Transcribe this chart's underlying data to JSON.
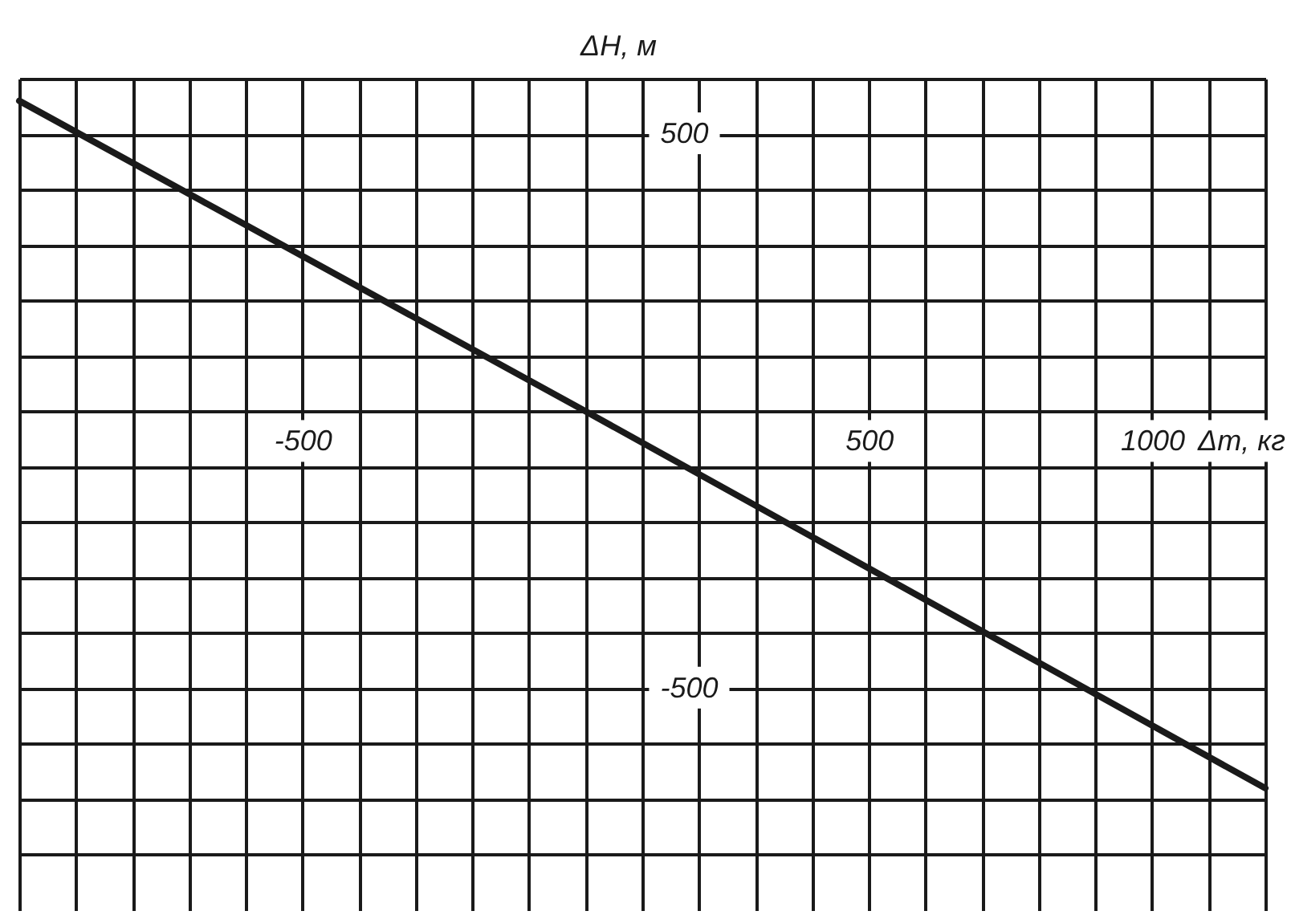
{
  "chart_data": {
    "type": "line",
    "xlabel": "Δm, кг",
    "ylabel": "ΔH, м",
    "x": [
      -1000,
      0,
      1200
    ],
    "values": [
      560,
      0,
      -680
    ],
    "color": "#1a1a1a",
    "xlim": [
      -1000,
      1200
    ],
    "ylim": [
      -900,
      600
    ],
    "xticks": [
      {
        "value": -1000,
        "label": null
      },
      {
        "value": -900,
        "label": null
      },
      {
        "value": -800,
        "label": null
      },
      {
        "value": -700,
        "label": null
      },
      {
        "value": -600,
        "label": null
      },
      -500,
      {
        "value": -400,
        "label": null
      },
      {
        "value": -300,
        "label": null
      },
      {
        "value": -200,
        "label": null
      },
      {
        "value": -100,
        "label": null
      },
      {
        "value": 0,
        "label": null
      },
      {
        "value": 100,
        "label": null
      },
      {
        "value": 200,
        "label": null
      },
      {
        "value": 300,
        "label": null
      },
      {
        "value": 400,
        "label": null
      },
      500,
      {
        "value": 600,
        "label": null
      },
      {
        "value": 700,
        "label": null
      },
      {
        "value": 800,
        "label": null
      },
      {
        "value": 900,
        "label": null
      },
      1000,
      {
        "value": 1100,
        "label": null
      },
      {
        "value": 1200,
        "label": null
      }
    ],
    "yticks": [
      {
        "value": -800,
        "label": null
      },
      {
        "value": -700,
        "label": null
      },
      {
        "value": -600,
        "label": null
      },
      -500,
      {
        "value": -400,
        "label": null
      },
      {
        "value": -300,
        "label": null
      },
      {
        "value": -200,
        "label": null
      },
      {
        "value": -100,
        "label": null
      },
      {
        "value": 0,
        "label": null
      },
      {
        "value": 100,
        "label": null
      },
      {
        "value": 200,
        "label": null
      },
      {
        "value": 300,
        "label": null
      },
      {
        "value": 400,
        "label": null
      },
      500,
      {
        "value": 600,
        "label": null
      }
    ],
    "grid": true
  }
}
